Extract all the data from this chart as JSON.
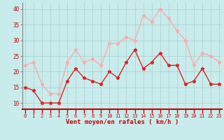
{
  "x": [
    0,
    1,
    2,
    3,
    4,
    5,
    6,
    7,
    8,
    9,
    10,
    11,
    12,
    13,
    14,
    15,
    16,
    17,
    18,
    19,
    20,
    21,
    22,
    23
  ],
  "wind_avg": [
    15,
    14,
    10,
    10,
    10,
    17,
    21,
    18,
    17,
    16,
    20,
    18,
    23,
    27,
    21,
    23,
    26,
    22,
    22,
    16,
    17,
    21,
    16,
    16
  ],
  "wind_gust": [
    22,
    23,
    16,
    13,
    13,
    23,
    27,
    23,
    24,
    22,
    29,
    29,
    31,
    30,
    38,
    36,
    40,
    37,
    33,
    30,
    22,
    26,
    25,
    23
  ],
  "avg_color": "#dd2222",
  "gust_color": "#ffaaaa",
  "bg_color": "#c8ecec",
  "grid_color": "#aacccc",
  "xlabel": "Vent moyen/en rafales ( km/h )",
  "yticks": [
    10,
    15,
    20,
    25,
    30,
    35,
    40
  ],
  "ylim": [
    8,
    42
  ],
  "xlim": [
    -0.3,
    23.3
  ]
}
